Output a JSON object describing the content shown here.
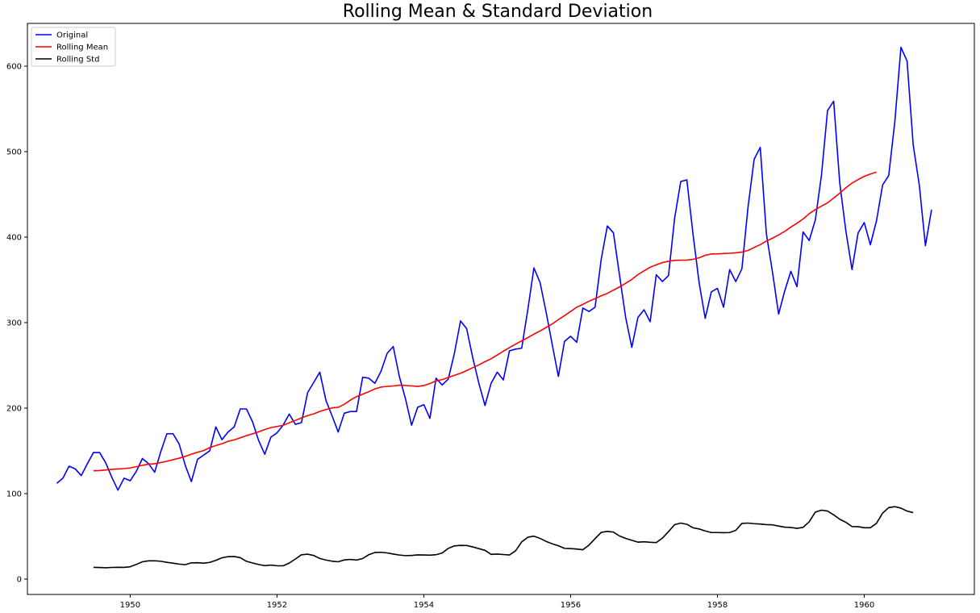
{
  "chart_data": {
    "type": "line",
    "title": "Rolling Mean & Standard Deviation",
    "xlabel": "",
    "ylabel": "",
    "xlim": [
      1948.6,
      1961.5
    ],
    "ylim": [
      -18,
      650
    ],
    "x_ticks": [
      1950,
      1952,
      1954,
      1956,
      1958,
      1960
    ],
    "x_tick_labels": [
      "1950",
      "1952",
      "1954",
      "1956",
      "1958",
      "1960"
    ],
    "y_ticks": [
      0,
      100,
      200,
      300,
      400,
      500,
      600
    ],
    "y_tick_labels": [
      "0",
      "100",
      "200",
      "300",
      "400",
      "500",
      "600"
    ],
    "grid": false,
    "legend_position": "top-left",
    "x_start": 1949.0,
    "x_step_months": 1,
    "series": [
      {
        "name": "Original",
        "color": "#0000ff",
        "values": [
          112,
          118,
          132,
          129,
          121,
          135,
          148,
          148,
          136,
          119,
          104,
          118,
          115,
          126,
          141,
          135,
          125,
          149,
          170,
          170,
          158,
          133,
          114,
          140,
          145,
          150,
          178,
          163,
          172,
          178,
          199,
          199,
          184,
          162,
          146,
          166,
          171,
          180,
          193,
          181,
          183,
          218,
          230,
          242,
          209,
          191,
          172,
          194,
          196,
          196,
          236,
          235,
          229,
          243,
          264,
          272,
          237,
          211,
          180,
          201,
          204,
          188,
          235,
          227,
          234,
          264,
          302,
          293,
          259,
          229,
          203,
          229,
          242,
          233,
          267,
          269,
          270,
          315,
          364,
          347,
          312,
          274,
          237,
          278,
          284,
          277,
          317,
          313,
          318,
          374,
          413,
          405,
          355,
          306,
          271,
          306,
          315,
          301,
          356,
          348,
          355,
          422,
          465,
          467,
          404,
          347,
          305,
          336,
          340,
          318,
          362,
          348,
          363,
          435,
          491,
          505,
          404,
          359,
          310,
          337,
          360,
          342,
          406,
          396,
          420,
          472,
          548,
          559,
          463,
          407,
          362,
          405,
          417,
          391,
          419,
          461,
          472,
          535,
          622,
          606,
          508,
          461,
          390,
          432
        ]
      },
      {
        "name": "Rolling Mean",
        "color": "#ff0000",
        "start_index": 6,
        "values": [
          126.7,
          126.9,
          127.6,
          128.3,
          128.8,
          129.2,
          130.0,
          131.4,
          133.1,
          134.3,
          134.9,
          136.3,
          137.8,
          139.6,
          141.4,
          143.5,
          146.1,
          148.3,
          150.3,
          153.7,
          156.2,
          158.3,
          161.1,
          162.8,
          165.3,
          167.8,
          169.9,
          172.2,
          174.9,
          177.2,
          178.5,
          179.9,
          182.8,
          185.5,
          188.5,
          191.2,
          193.2,
          196.1,
          198.3,
          200.2,
          200.8,
          204.5,
          209.3,
          213.4,
          216.2,
          219.2,
          222.4,
          224.6,
          225.3,
          225.9,
          226.8,
          226.5,
          225.9,
          225.4,
          226.4,
          228.7,
          231.8,
          233.3,
          235.8,
          238.3,
          240.8,
          243.8,
          247.3,
          250.6,
          254.3,
          257.7,
          262.0,
          266.5,
          270.8,
          274.8,
          278.7,
          282.4,
          286.5,
          290.2,
          294.3,
          298.5,
          303.5,
          308.2,
          313.0,
          318.0,
          321.3,
          325.0,
          328.1,
          331.3,
          334.2,
          338.0,
          341.7,
          346.0,
          350.5,
          356.1,
          360.5,
          364.8,
          367.5,
          370.2,
          371.7,
          372.8,
          373.0,
          373.1,
          374.0,
          375.8,
          378.7,
          380.3,
          380.4,
          380.8,
          381.1,
          381.6,
          382.5,
          384.4,
          387.9,
          391.2,
          395.4,
          398.8,
          402.5,
          406.7,
          411.7,
          416.3,
          421.2,
          427.4,
          432.2,
          436.2,
          440.1,
          445.6,
          451.4,
          457.8,
          463.2,
          467.3,
          471.1,
          473.8,
          476.0
        ]
      },
      {
        "name": "Rolling Std",
        "color": "#000000",
        "start_index": 6,
        "values": [
          13.7,
          13.5,
          13.2,
          13.6,
          13.8,
          13.7,
          14.4,
          17.1,
          20.2,
          21.3,
          21.4,
          20.8,
          19.6,
          18.6,
          17.5,
          16.8,
          19.0,
          19.1,
          18.6,
          19.5,
          21.9,
          24.9,
          26.2,
          26.4,
          25.0,
          20.8,
          18.8,
          17.0,
          15.7,
          16.4,
          15.6,
          15.5,
          18.7,
          23.4,
          28.4,
          29.1,
          27.6,
          24.1,
          22.2,
          20.9,
          20.2,
          22.4,
          23.0,
          22.2,
          24.0,
          28.5,
          31.1,
          31.3,
          30.6,
          29.2,
          28.1,
          27.4,
          27.6,
          28.3,
          28.2,
          27.9,
          28.5,
          30.5,
          35.9,
          38.8,
          39.4,
          39.3,
          37.6,
          35.6,
          33.6,
          28.9,
          29.2,
          28.7,
          28.2,
          33.0,
          43.5,
          48.9,
          50.2,
          47.6,
          44.0,
          41.2,
          39.0,
          35.9,
          35.6,
          35.1,
          34.3,
          39.7,
          47.3,
          54.6,
          55.8,
          54.9,
          50.4,
          47.6,
          45.3,
          43.2,
          43.6,
          43.0,
          42.7,
          47.9,
          55.5,
          63.6,
          65.5,
          64.1,
          60.0,
          58.6,
          56.3,
          54.4,
          54.4,
          54.2,
          54.4,
          57.0,
          65.1,
          65.5,
          64.8,
          64.4,
          63.7,
          63.4,
          62.0,
          60.7,
          60.4,
          59.3,
          60.5,
          67.0,
          78.3,
          80.6,
          79.6,
          75.1,
          70.0,
          66.4,
          61.4,
          61.3,
          60.0,
          60.0,
          65.2,
          77.1,
          83.6,
          84.7,
          82.9,
          79.5,
          77.7
        ]
      }
    ]
  }
}
